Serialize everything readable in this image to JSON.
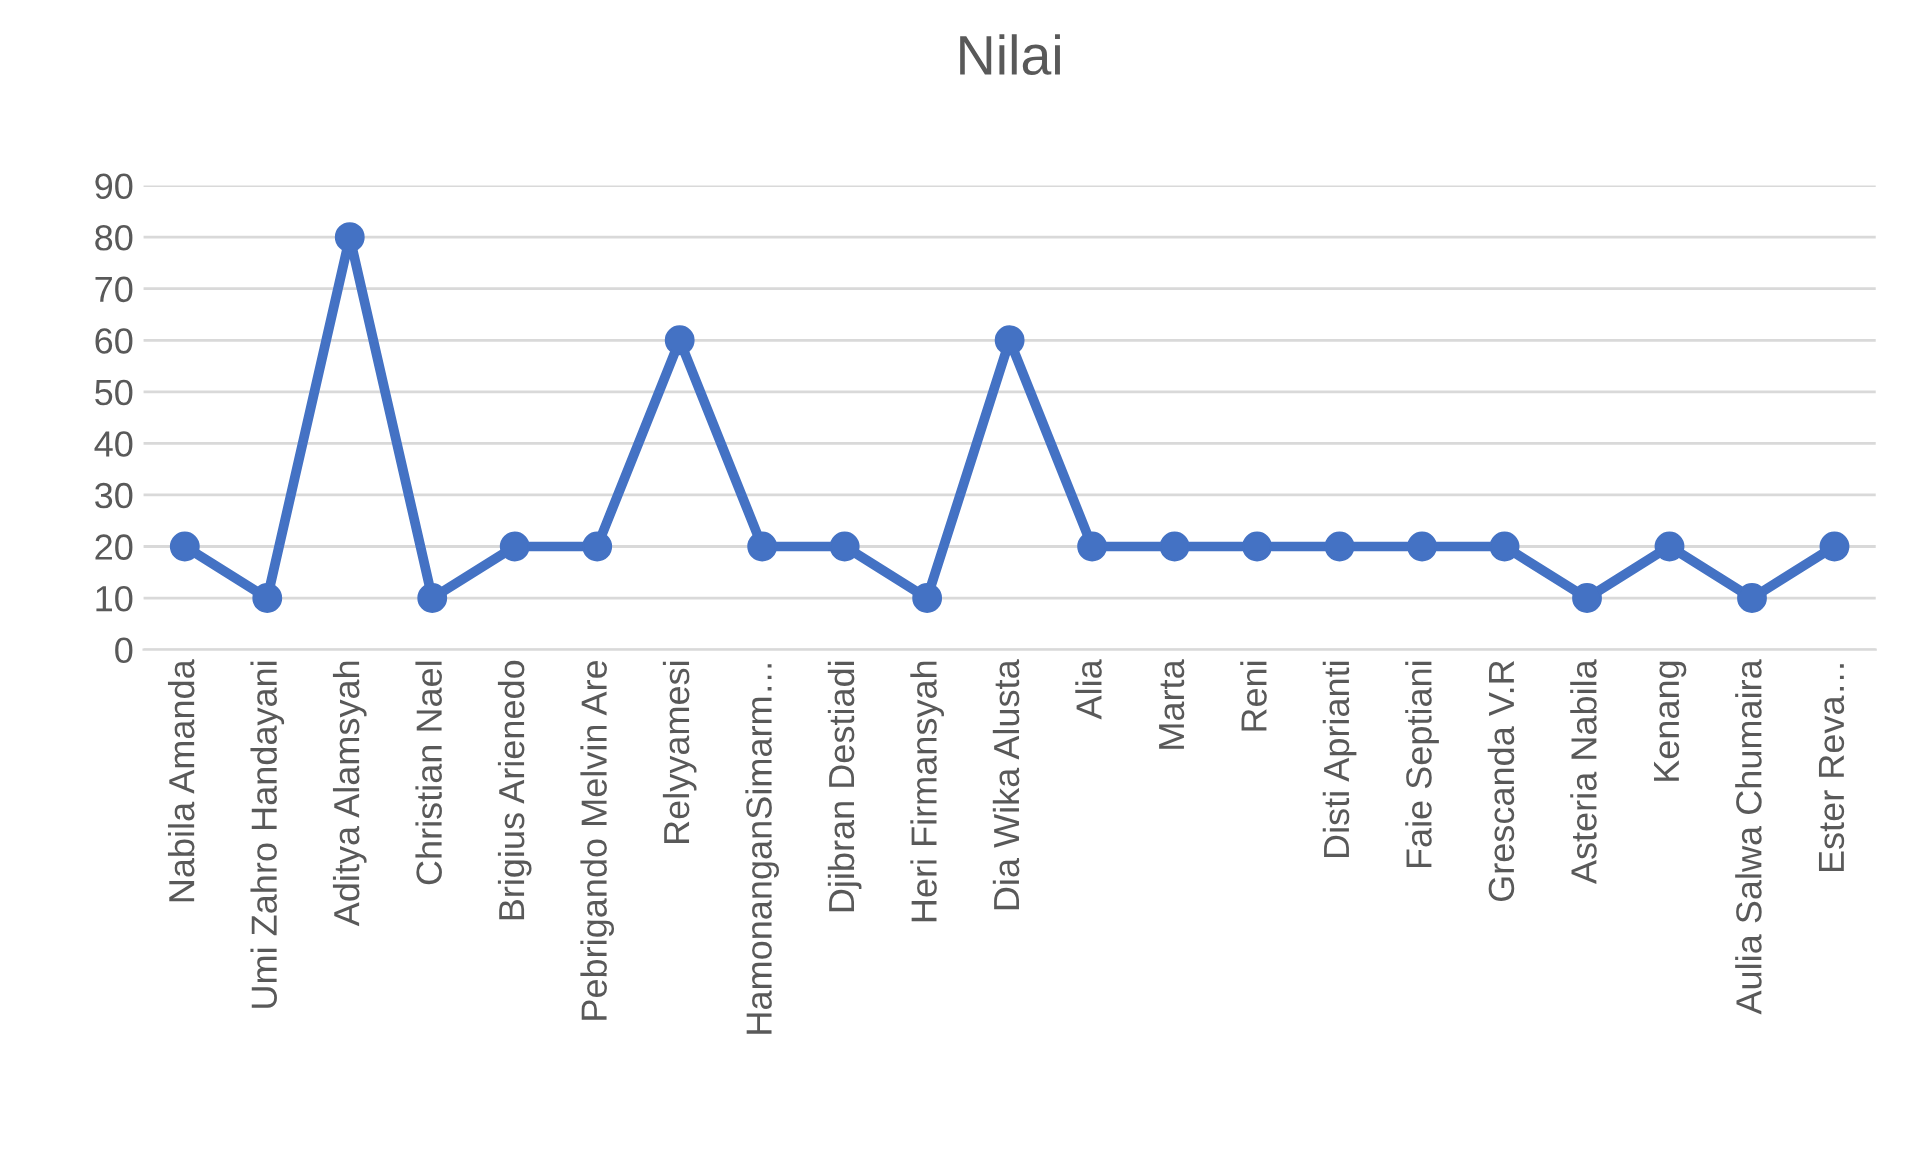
{
  "chart_data": {
    "type": "line",
    "title": "Nilai",
    "categories": [
      "Nabila Amanda",
      "Umi Zahro Handayani",
      "Aditya Alamsyah",
      "Christian Nael",
      "Brigius Arienedo",
      "Pebrigando Melvin Are",
      "Relyyamesi",
      "HamonanganSimarm…",
      "Djibran Destiadi",
      "Heri Firmansyah",
      "Dia Wika Alusta",
      "Alia",
      "Marta",
      "Reni",
      "Disti Aprianti",
      "Faie Septiani",
      "Grescanda V.R",
      "Asteria Nabila",
      "Kenang",
      "Aulia Salwa Chumaira",
      "Ester Reva…"
    ],
    "series": [
      {
        "color": "#4472c4",
        "values": [
          20,
          10,
          80,
          10,
          20,
          20,
          60,
          20,
          20,
          10,
          60,
          20,
          20,
          20,
          20,
          20,
          20,
          10,
          20,
          10,
          20
        ]
      }
    ],
    "ylim": [
      0,
      90
    ],
    "yticks": [
      0,
      10,
      20,
      30,
      40,
      50,
      60,
      70,
      80,
      90
    ],
    "grid": "y",
    "marker": "circle",
    "line_style": "solid",
    "legend": false
  }
}
